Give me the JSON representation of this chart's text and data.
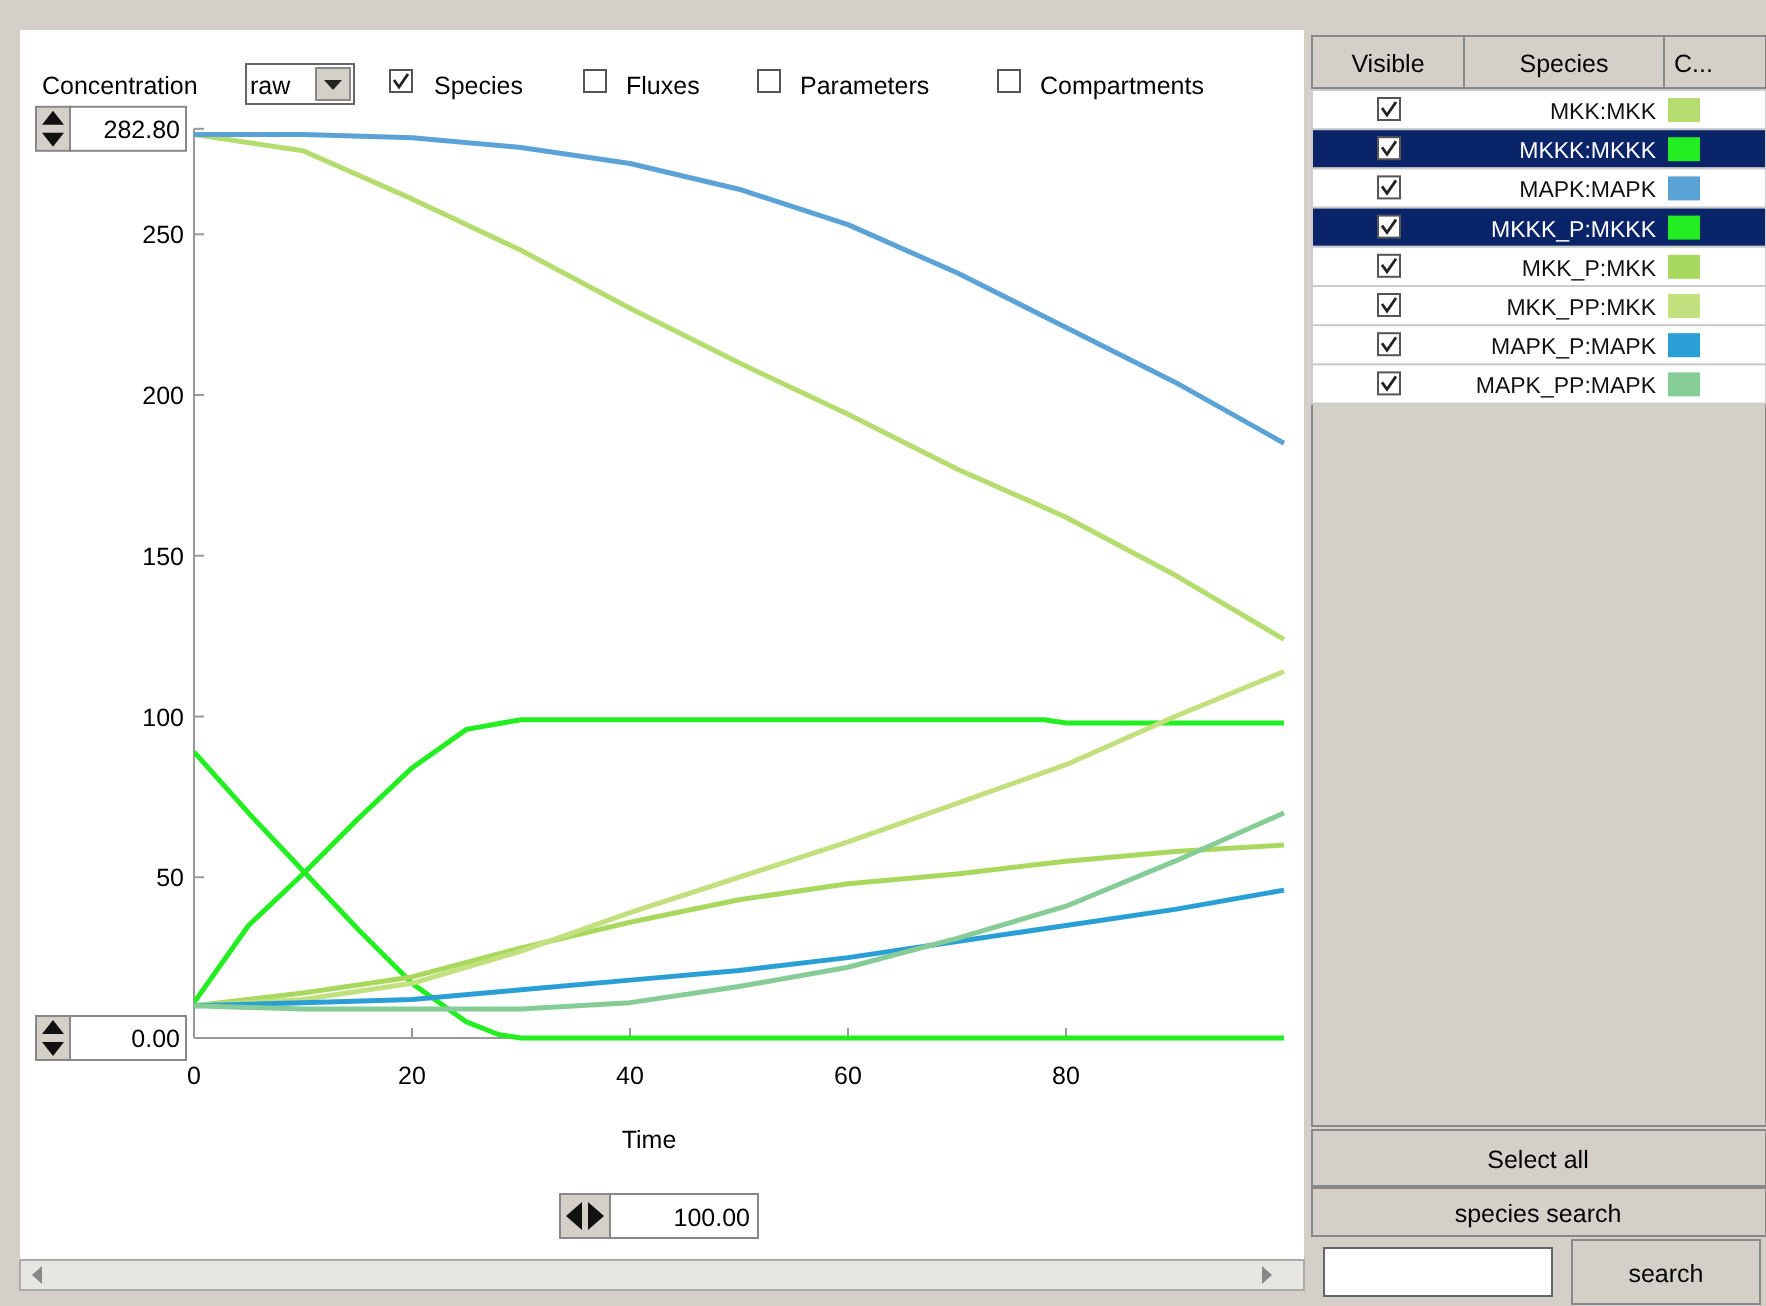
{
  "chart_data": {
    "type": "line",
    "xlabel": "Time",
    "xlim": [
      0,
      100
    ],
    "xticks": [
      0,
      20,
      40,
      60,
      80
    ],
    "ylim": [
      0,
      282.8
    ],
    "yticks": [
      {
        "value": 0,
        "label": "0.00"
      },
      50,
      100,
      150,
      200,
      250,
      {
        "value": 282.8,
        "label": "282.80"
      }
    ],
    "legend": "right",
    "grid": false,
    "marker": "none",
    "line_style": "solid",
    "annotations": [
      "Concentration",
      "raw",
      "Species",
      "Fluxes",
      "Parameters",
      "Compartments",
      "Visible",
      "Species",
      "C...",
      "Select all",
      "species search",
      "search",
      "100.00"
    ],
    "series": [
      {
        "name": "MKK:MKK",
        "color": "#b5dc6e",
        "x": [
          0,
          10,
          20,
          30,
          40,
          50,
          60,
          70,
          80,
          90,
          100
        ],
        "values": [
          281,
          276,
          261,
          245,
          227,
          210,
          194,
          177,
          162,
          144,
          124
        ]
      },
      {
        "name": "MKKK:MKKK",
        "color": "#22ee22",
        "x": [
          0,
          5,
          10,
          15,
          20,
          25,
          28,
          30,
          40,
          60,
          80,
          100
        ],
        "values": [
          89,
          70,
          52,
          34,
          17,
          5,
          1,
          0,
          0,
          0,
          0,
          0
        ]
      },
      {
        "name": "MAPK:MAPK",
        "color": "#5ba3d6",
        "x": [
          0,
          10,
          20,
          30,
          40,
          50,
          60,
          70,
          80,
          90,
          100
        ],
        "values": [
          281,
          281,
          280,
          277,
          272,
          264,
          253,
          238,
          221,
          204,
          185
        ]
      },
      {
        "name": "MKKK_P:MKKK",
        "color": "#22ee22",
        "x": [
          0,
          5,
          10,
          15,
          20,
          25,
          30,
          40,
          60,
          78,
          80,
          100
        ],
        "values": [
          11,
          35,
          51,
          68,
          84,
          96,
          99,
          99,
          99,
          99,
          98,
          98
        ]
      },
      {
        "name": "MKK_P:MKK",
        "color": "#a8d85e",
        "x": [
          0,
          10,
          20,
          30,
          40,
          50,
          60,
          70,
          80,
          90,
          100
        ],
        "values": [
          10,
          14,
          19,
          28,
          36,
          43,
          48,
          51,
          55,
          58,
          60
        ]
      },
      {
        "name": "MKK_PP:MKK",
        "color": "#c2e07e",
        "x": [
          0,
          10,
          20,
          30,
          40,
          50,
          60,
          70,
          80,
          90,
          100
        ],
        "values": [
          10,
          12,
          17,
          27,
          39,
          50,
          61,
          73,
          85,
          100,
          114
        ]
      },
      {
        "name": "MAPK_P:MAPK",
        "color": "#2a9fd6",
        "x": [
          0,
          10,
          20,
          30,
          40,
          50,
          60,
          70,
          80,
          90,
          100
        ],
        "values": [
          10,
          11,
          12,
          15,
          18,
          21,
          25,
          30,
          35,
          40,
          46
        ]
      },
      {
        "name": "MAPK_PP:MAPK",
        "color": "#86cc96",
        "x": [
          0,
          10,
          20,
          30,
          40,
          50,
          60,
          70,
          80,
          90,
          100
        ],
        "values": [
          10,
          9,
          9,
          9,
          11,
          16,
          22,
          31,
          41,
          55,
          70
        ]
      }
    ]
  }
}
